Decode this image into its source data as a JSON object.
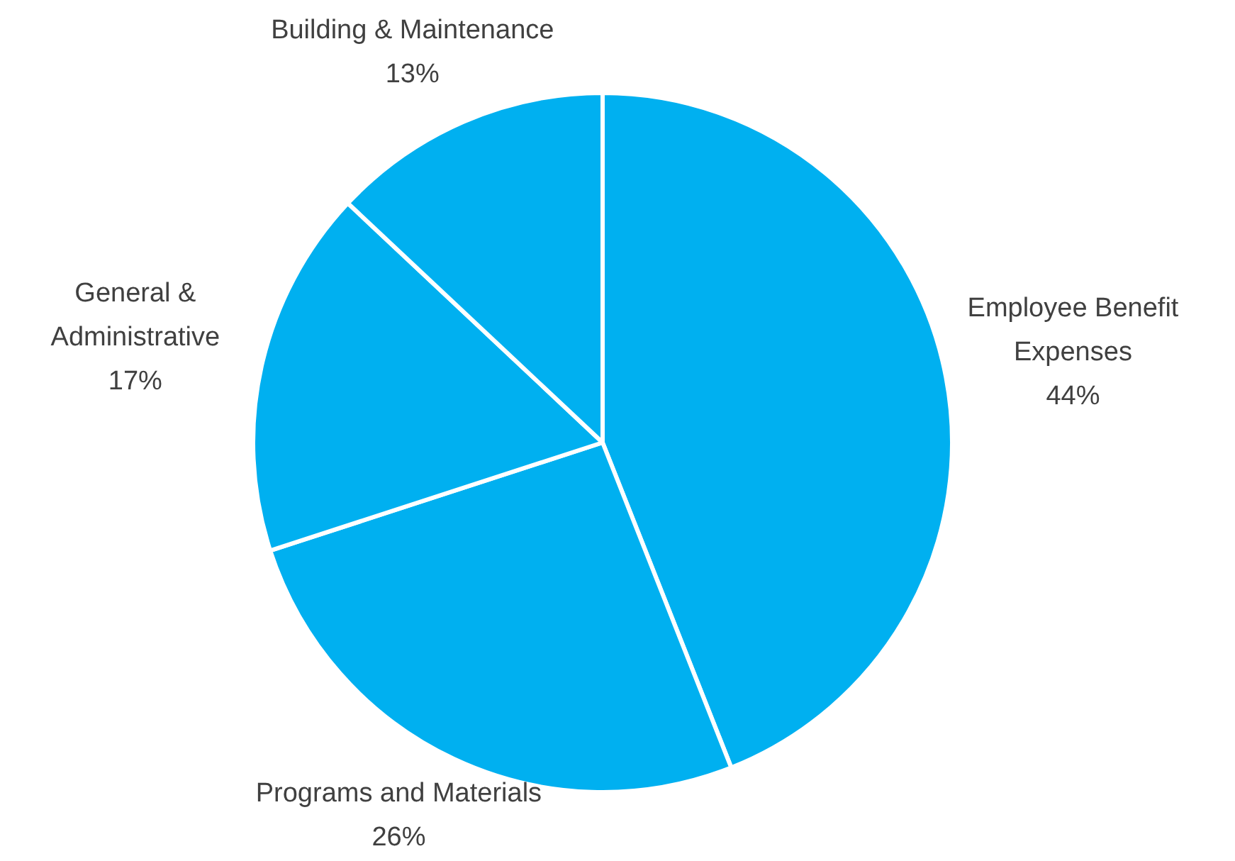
{
  "chart_data": {
    "type": "pie",
    "categories": [
      "Employee Benefit Expenses",
      "Programs and Materials",
      "General & Administrative",
      "Building & Maintenance"
    ],
    "values": [
      44,
      26,
      17,
      13
    ],
    "colors": [
      "#00b0f0",
      "#00b0f0",
      "#00b0f0",
      "#00b0f0"
    ],
    "value_labels": [
      "44%",
      "26%",
      "17%",
      "13%"
    ],
    "legend": false
  }
}
